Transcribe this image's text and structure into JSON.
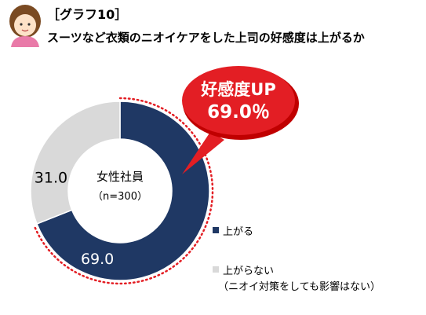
{
  "header": {
    "tag": "［グラフ10］",
    "title": "スーツなど衣類のニオイケアをした上司の好感度は上がるか"
  },
  "callout": {
    "line1": "好感度UP",
    "line2": "69.0％"
  },
  "center": {
    "line1": "女性社員",
    "line2": "（n=300）"
  },
  "chart_data": {
    "type": "pie",
    "donut": true,
    "categories": [
      "上がる",
      "上がらない（ニオイ対策をしても影響はない）"
    ],
    "values": [
      69.0,
      31.0
    ],
    "data_labels": [
      "69.0",
      "31.0"
    ],
    "colors": [
      "#1f3864",
      "#d9d9d9"
    ],
    "legend_position": "right",
    "legend": [
      {
        "label_line1": "上がる",
        "label_line2": ""
      },
      {
        "label_line1": "上がらない",
        "label_line2": "（ニオイ対策をしても影響はない）"
      }
    ],
    "highlight_color": "#e31e24",
    "title": "",
    "xlabel": "",
    "ylabel": ""
  }
}
